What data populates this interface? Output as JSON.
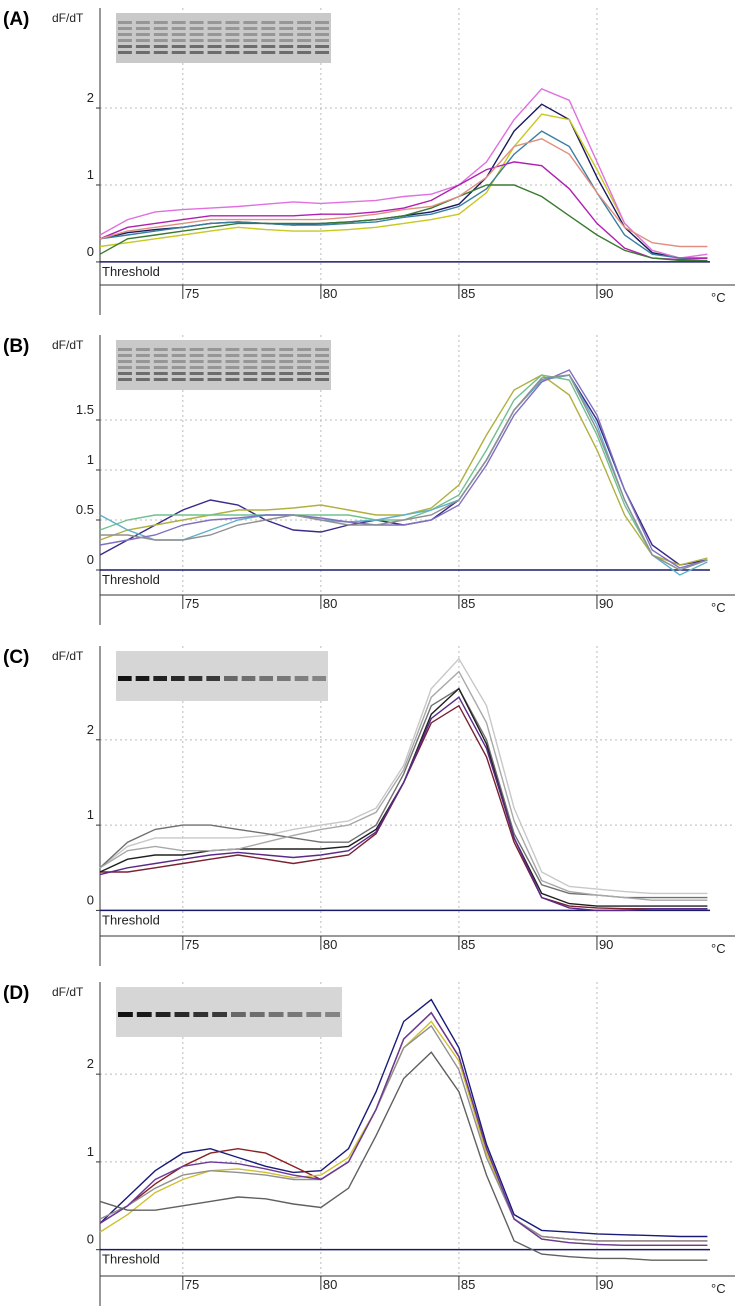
{
  "chart_data": [
    {
      "type": "line",
      "panel_label": "(A)",
      "ylabel": "dF/dT",
      "xlabel": "°C",
      "threshold_label": "Threshold",
      "threshold": 0,
      "xlim": [
        72,
        95
      ],
      "ylim": [
        -0.3,
        3.3
      ],
      "xticks": [
        75,
        80,
        85,
        90
      ],
      "yticks": [
        0,
        1,
        2
      ],
      "grid": true,
      "x": [
        72,
        73,
        74,
        75,
        76,
        77,
        78,
        79,
        80,
        81,
        82,
        83,
        84,
        85,
        86,
        87,
        88,
        89,
        90,
        91,
        92,
        93,
        94
      ],
      "series": [
        {
          "color": "#1a1a5e",
          "values": [
            0.3,
            0.38,
            0.42,
            0.45,
            0.5,
            0.52,
            0.5,
            0.48,
            0.5,
            0.52,
            0.55,
            0.6,
            0.65,
            0.75,
            1.1,
            1.7,
            2.05,
            1.85,
            1.1,
            0.45,
            0.12,
            0.05,
            0.05
          ]
        },
        {
          "color": "#c8c820",
          "values": [
            0.2,
            0.25,
            0.3,
            0.35,
            0.4,
            0.45,
            0.42,
            0.4,
            0.4,
            0.42,
            0.45,
            0.5,
            0.55,
            0.62,
            0.9,
            1.5,
            1.92,
            1.85,
            1.2,
            0.5,
            0.15,
            0.05,
            0.05
          ]
        },
        {
          "color": "#e070e0",
          "values": [
            0.35,
            0.55,
            0.65,
            0.68,
            0.7,
            0.72,
            0.75,
            0.78,
            0.76,
            0.78,
            0.8,
            0.85,
            0.88,
            1.0,
            1.3,
            1.85,
            2.25,
            2.1,
            1.3,
            0.5,
            0.15,
            0.05,
            0.1
          ]
        },
        {
          "color": "#3a7fa0",
          "values": [
            0.3,
            0.35,
            0.4,
            0.45,
            0.5,
            0.52,
            0.5,
            0.48,
            0.48,
            0.5,
            0.52,
            0.58,
            0.62,
            0.72,
            0.95,
            1.4,
            1.7,
            1.5,
            0.9,
            0.35,
            0.1,
            0.05,
            0.05
          ]
        },
        {
          "color": "#b020b0",
          "values": [
            0.3,
            0.45,
            0.5,
            0.55,
            0.6,
            0.6,
            0.6,
            0.6,
            0.62,
            0.62,
            0.65,
            0.7,
            0.8,
            1.0,
            1.2,
            1.3,
            1.25,
            0.95,
            0.5,
            0.18,
            0.05,
            0.03,
            0.05
          ]
        },
        {
          "color": "#3a7a30",
          "values": [
            0.1,
            0.3,
            0.35,
            0.4,
            0.45,
            0.5,
            0.5,
            0.5,
            0.5,
            0.52,
            0.55,
            0.6,
            0.7,
            0.85,
            1.0,
            1.0,
            0.85,
            0.6,
            0.35,
            0.15,
            0.05,
            0.02,
            0.02
          ]
        },
        {
          "color": "#e09080",
          "values": [
            0.3,
            0.4,
            0.45,
            0.5,
            0.55,
            0.55,
            0.55,
            0.55,
            0.55,
            0.58,
            0.62,
            0.68,
            0.72,
            0.85,
            1.1,
            1.5,
            1.6,
            1.4,
            0.9,
            0.45,
            0.25,
            0.2,
            0.2
          ]
        }
      ]
    },
    {
      "type": "line",
      "panel_label": "(B)",
      "ylabel": "dF/dT",
      "xlabel": "°C",
      "threshold_label": "Threshold",
      "threshold": 0,
      "xlim": [
        72,
        95
      ],
      "ylim": [
        -0.25,
        2.35
      ],
      "xticks": [
        75,
        80,
        85,
        90
      ],
      "yticks": [
        0,
        0.5,
        1,
        1.5
      ],
      "grid": true,
      "x": [
        72,
        73,
        74,
        75,
        76,
        77,
        78,
        79,
        80,
        81,
        82,
        83,
        84,
        85,
        86,
        87,
        88,
        89,
        90,
        91,
        92,
        93,
        94
      ],
      "series": [
        {
          "color": "#3a2a8a",
          "values": [
            0.15,
            0.3,
            0.45,
            0.6,
            0.7,
            0.65,
            0.5,
            0.4,
            0.38,
            0.45,
            0.5,
            0.45,
            0.5,
            0.7,
            1.1,
            1.6,
            1.9,
            1.95,
            1.5,
            0.8,
            0.25,
            0.05,
            0.1
          ]
        },
        {
          "color": "#b0b040",
          "values": [
            0.3,
            0.4,
            0.45,
            0.5,
            0.55,
            0.6,
            0.6,
            0.62,
            0.65,
            0.6,
            0.55,
            0.55,
            0.62,
            0.85,
            1.35,
            1.8,
            1.95,
            1.75,
            1.2,
            0.55,
            0.15,
            0.05,
            0.12
          ]
        },
        {
          "color": "#70c090",
          "values": [
            0.4,
            0.5,
            0.55,
            0.55,
            0.55,
            0.55,
            0.55,
            0.55,
            0.55,
            0.55,
            0.5,
            0.5,
            0.6,
            0.75,
            1.2,
            1.7,
            1.95,
            1.9,
            1.35,
            0.65,
            0.15,
            0.0,
            0.1
          ]
        },
        {
          "color": "#60b0c8",
          "values": [
            0.55,
            0.4,
            0.3,
            0.3,
            0.4,
            0.5,
            0.55,
            0.55,
            0.5,
            0.48,
            0.5,
            0.55,
            0.6,
            0.7,
            1.1,
            1.6,
            1.9,
            1.95,
            1.45,
            0.7,
            0.15,
            -0.05,
            0.08
          ]
        },
        {
          "color": "#8070c0",
          "values": [
            0.25,
            0.3,
            0.35,
            0.45,
            0.5,
            0.52,
            0.55,
            0.55,
            0.52,
            0.48,
            0.45,
            0.45,
            0.5,
            0.65,
            1.05,
            1.55,
            1.88,
            2.0,
            1.55,
            0.8,
            0.2,
            0.02,
            0.1
          ]
        },
        {
          "color": "#909090",
          "values": [
            0.35,
            0.35,
            0.3,
            0.3,
            0.35,
            0.45,
            0.5,
            0.55,
            0.5,
            0.45,
            0.45,
            0.5,
            0.55,
            0.7,
            1.1,
            1.6,
            1.92,
            1.95,
            1.4,
            0.7,
            0.15,
            0.0,
            0.1
          ]
        }
      ]
    },
    {
      "type": "line",
      "panel_label": "(C)",
      "ylabel": "dF/dT",
      "xlabel": "°C",
      "threshold_label": "Threshold",
      "threshold": 0,
      "xlim": [
        72,
        95
      ],
      "ylim": [
        -0.3,
        3.1
      ],
      "xticks": [
        75,
        80,
        85,
        90
      ],
      "yticks": [
        0,
        1,
        2
      ],
      "grid": true,
      "x": [
        72,
        73,
        74,
        75,
        76,
        77,
        78,
        79,
        80,
        81,
        82,
        83,
        84,
        85,
        86,
        87,
        88,
        89,
        90,
        91,
        92,
        93,
        94
      ],
      "series": [
        {
          "color": "#c8c8c8",
          "values": [
            0.5,
            0.75,
            0.85,
            0.85,
            0.85,
            0.85,
            0.88,
            0.95,
            1.0,
            1.05,
            1.2,
            1.7,
            2.6,
            2.95,
            2.4,
            1.2,
            0.45,
            0.28,
            0.25,
            0.22,
            0.2,
            0.2,
            0.2
          ]
        },
        {
          "color": "#707070",
          "values": [
            0.5,
            0.8,
            0.95,
            1.0,
            1.0,
            0.95,
            0.9,
            0.85,
            0.8,
            0.8,
            1.0,
            1.6,
            2.4,
            2.6,
            2.0,
            0.9,
            0.3,
            0.2,
            0.18,
            0.15,
            0.15,
            0.15,
            0.15
          ]
        },
        {
          "color": "#7a2030",
          "values": [
            0.45,
            0.45,
            0.5,
            0.55,
            0.6,
            0.65,
            0.6,
            0.55,
            0.6,
            0.65,
            0.9,
            1.5,
            2.2,
            2.4,
            1.8,
            0.8,
            0.15,
            0.05,
            0.03,
            0.02,
            0.02,
            0.02,
            0.02
          ]
        },
        {
          "color": "#202020",
          "values": [
            0.45,
            0.6,
            0.65,
            0.65,
            0.7,
            0.72,
            0.72,
            0.72,
            0.72,
            0.75,
            0.95,
            1.5,
            2.3,
            2.6,
            1.95,
            0.85,
            0.2,
            0.08,
            0.05,
            0.05,
            0.05,
            0.05,
            0.05
          ]
        },
        {
          "color": "#a8a8a8",
          "values": [
            0.5,
            0.7,
            0.75,
            0.7,
            0.7,
            0.72,
            0.8,
            0.88,
            0.95,
            1.0,
            1.15,
            1.65,
            2.5,
            2.8,
            2.2,
            1.05,
            0.35,
            0.22,
            0.18,
            0.15,
            0.12,
            0.12,
            0.12
          ]
        },
        {
          "color": "#5a2a8a",
          "values": [
            0.42,
            0.5,
            0.55,
            0.6,
            0.65,
            0.68,
            0.65,
            0.62,
            0.65,
            0.7,
            0.92,
            1.5,
            2.25,
            2.5,
            1.9,
            0.85,
            0.15,
            0.03,
            0.0,
            0.0,
            0.02,
            0.02,
            0.02
          ]
        }
      ]
    },
    {
      "type": "line",
      "panel_label": "(D)",
      "ylabel": "dF/dT",
      "xlabel": "°C",
      "threshold_label": "Threshold",
      "threshold": 0,
      "xlim": [
        72,
        95
      ],
      "ylim": [
        -0.3,
        3.05
      ],
      "xticks": [
        75,
        80,
        85,
        90
      ],
      "yticks": [
        0,
        1,
        2
      ],
      "grid": true,
      "x": [
        72,
        73,
        74,
        75,
        76,
        77,
        78,
        79,
        80,
        81,
        82,
        83,
        84,
        85,
        86,
        87,
        88,
        89,
        90,
        91,
        92,
        93,
        94
      ],
      "series": [
        {
          "color": "#1a1a7a",
          "values": [
            0.3,
            0.6,
            0.9,
            1.1,
            1.15,
            1.05,
            0.95,
            0.88,
            0.9,
            1.15,
            1.8,
            2.6,
            2.85,
            2.3,
            1.2,
            0.4,
            0.22,
            0.2,
            0.18,
            0.17,
            0.16,
            0.15,
            0.15
          ]
        },
        {
          "color": "#8a2020",
          "values": [
            0.3,
            0.5,
            0.75,
            0.95,
            1.1,
            1.15,
            1.1,
            0.95,
            0.8,
            1.0,
            1.6,
            2.4,
            2.7,
            2.2,
            1.15,
            0.35,
            0.15,
            0.12,
            0.1,
            0.1,
            0.1,
            0.1,
            0.1
          ]
        },
        {
          "color": "#d0c030",
          "values": [
            0.2,
            0.4,
            0.65,
            0.8,
            0.9,
            0.92,
            0.88,
            0.82,
            0.85,
            1.05,
            1.6,
            2.3,
            2.6,
            2.15,
            1.1,
            0.35,
            0.12,
            0.08,
            0.06,
            0.05,
            0.05,
            0.05,
            0.05
          ]
        },
        {
          "color": "#909090",
          "values": [
            0.35,
            0.5,
            0.7,
            0.85,
            0.9,
            0.88,
            0.85,
            0.8,
            0.8,
            1.0,
            1.6,
            2.3,
            2.55,
            2.05,
            1.05,
            0.35,
            0.15,
            0.12,
            0.1,
            0.1,
            0.1,
            0.1,
            0.1
          ]
        },
        {
          "color": "#6a3a9a",
          "values": [
            0.3,
            0.5,
            0.8,
            0.95,
            1.0,
            0.98,
            0.92,
            0.85,
            0.8,
            1.0,
            1.6,
            2.4,
            2.7,
            2.2,
            1.15,
            0.35,
            0.12,
            0.08,
            0.06,
            0.05,
            0.05,
            0.05,
            0.05
          ]
        },
        {
          "color": "#606060",
          "values": [
            0.55,
            0.45,
            0.45,
            0.5,
            0.55,
            0.6,
            0.58,
            0.52,
            0.48,
            0.7,
            1.3,
            1.95,
            2.25,
            1.8,
            0.85,
            0.1,
            -0.05,
            -0.08,
            -0.1,
            -0.1,
            -0.12,
            -0.12,
            -0.12
          ]
        }
      ]
    }
  ]
}
